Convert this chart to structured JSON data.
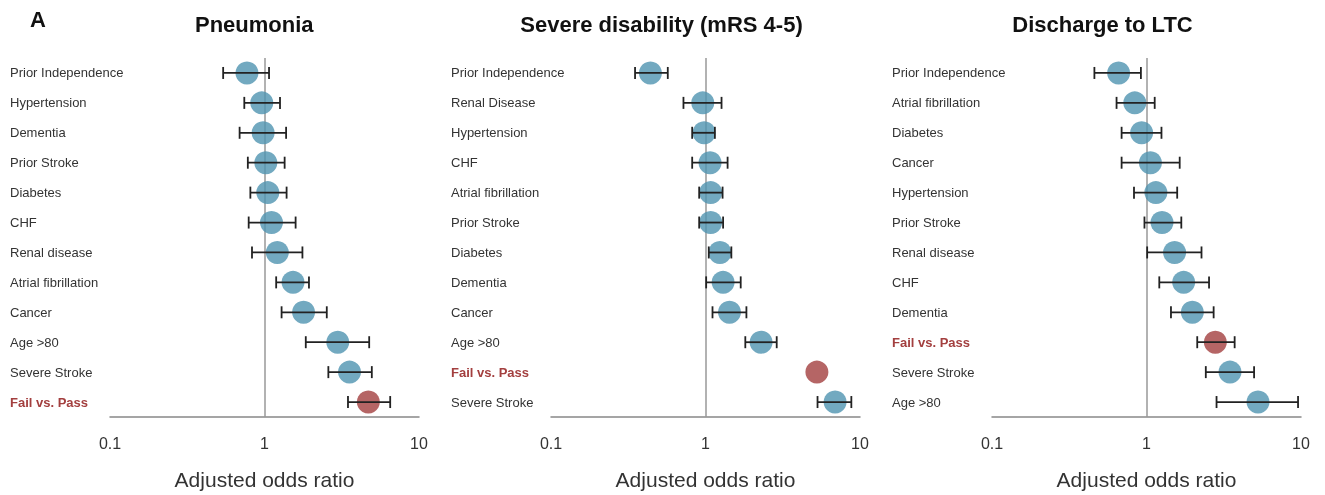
{
  "chart_data": [
    {
      "type": "scatter",
      "title": "Pneumonia",
      "xlabel": "Adjusted odds ratio",
      "annotations": [
        "A"
      ],
      "orientation": "horizontal",
      "log": "x",
      "xlim": [
        0.1,
        10
      ],
      "xticks": [
        0.1,
        1,
        10
      ],
      "grid": false,
      "marker": "circle",
      "categories": [
        "Prior Independence",
        "Hypertension",
        "Dementia",
        "Prior Stroke",
        "Diabetes",
        "CHF",
        "Renal disease",
        "Atrial fibrillation",
        "Cancer",
        "Age >80",
        "Severe Stroke",
        "Fail vs. Pass"
      ],
      "values": [
        0.77,
        0.96,
        0.98,
        1.02,
        1.05,
        1.11,
        1.21,
        1.53,
        1.79,
        2.98,
        3.55,
        4.7
      ],
      "errors": [
        [
          0.54,
          1.07
        ],
        [
          0.74,
          1.26
        ],
        [
          0.69,
          1.38
        ],
        [
          0.78,
          1.35
        ],
        [
          0.81,
          1.39
        ],
        [
          0.79,
          1.59
        ],
        [
          0.83,
          1.76
        ],
        [
          1.19,
          1.94
        ],
        [
          1.29,
          2.53
        ],
        [
          1.85,
          4.76
        ],
        [
          2.59,
          4.95
        ],
        [
          3.47,
          6.51
        ]
      ],
      "colors": [
        "#4f94b0",
        "#4f94b0",
        "#4f94b0",
        "#4f94b0",
        "#4f94b0",
        "#4f94b0",
        "#4f94b0",
        "#4f94b0",
        "#4f94b0",
        "#4f94b0",
        "#4f94b0",
        "#a33f3f"
      ],
      "ref_lines": [
        {
          "axis": "x",
          "value": 1,
          "color": "#999999"
        }
      ]
    },
    {
      "type": "scatter",
      "title": "Severe disability (mRS 4-5)",
      "xlabel": "Adjusted odds ratio",
      "orientation": "horizontal",
      "log": "x",
      "xlim": [
        0.1,
        10
      ],
      "xticks": [
        0.1,
        1,
        10
      ],
      "grid": false,
      "marker": "circle",
      "categories": [
        "Prior Independence",
        "Renal Disease",
        "Hypertension",
        "CHF",
        "Atrial fibrillation",
        "Prior Stroke",
        "Diabetes",
        "Dementia",
        "Cancer",
        "Age >80",
        "Fail vs. Pass",
        "Severe Stroke"
      ],
      "values": [
        0.44,
        0.96,
        0.98,
        1.07,
        1.08,
        1.08,
        1.24,
        1.3,
        1.43,
        2.29,
        5.26,
        6.9
      ],
      "errors": [
        [
          0.35,
          0.57
        ],
        [
          0.72,
          1.27
        ],
        [
          0.82,
          1.15
        ],
        [
          0.82,
          1.39
        ],
        [
          0.91,
          1.29
        ],
        [
          0.91,
          1.3
        ],
        [
          1.05,
          1.47
        ],
        [
          1.01,
          1.69
        ],
        [
          1.11,
          1.84
        ],
        [
          1.81,
          2.89
        ],
        null,
        [
          5.31,
          8.79
        ]
      ],
      "colors": [
        "#4f94b0",
        "#4f94b0",
        "#4f94b0",
        "#4f94b0",
        "#4f94b0",
        "#4f94b0",
        "#4f94b0",
        "#4f94b0",
        "#4f94b0",
        "#4f94b0",
        "#a33f3f",
        "#4f94b0"
      ],
      "ref_lines": [
        {
          "axis": "x",
          "value": 1,
          "color": "#999999"
        }
      ]
    },
    {
      "type": "scatter",
      "title": "Discharge to LTC",
      "xlabel": "Adjusted odds ratio",
      "orientation": "horizontal",
      "log": "x",
      "xlim": [
        0.1,
        10
      ],
      "xticks": [
        0.1,
        1,
        10
      ],
      "grid": false,
      "marker": "circle",
      "categories": [
        "Prior Independence",
        "Atrial fibrillation",
        "Diabetes",
        "Cancer",
        "Hypertension",
        "Prior Stroke",
        "Renal disease",
        "CHF",
        "Dementia",
        "Fail vs. Pass",
        "Severe Stroke",
        "Age >80"
      ],
      "values": [
        0.66,
        0.84,
        0.93,
        1.06,
        1.15,
        1.26,
        1.52,
        1.74,
        1.98,
        2.79,
        3.47,
        5.27
      ],
      "errors": [
        [
          0.46,
          0.92
        ],
        [
          0.64,
          1.13
        ],
        [
          0.69,
          1.25
        ],
        [
          0.69,
          1.64
        ],
        [
          0.83,
          1.58
        ],
        [
          0.97,
          1.68
        ],
        [
          1.01,
          2.27
        ],
        [
          1.21,
          2.54
        ],
        [
          1.44,
          2.72
        ],
        [
          2.13,
          3.72
        ],
        [
          2.42,
          4.97
        ],
        [
          2.84,
          9.57
        ]
      ],
      "colors": [
        "#4f94b0",
        "#4f94b0",
        "#4f94b0",
        "#4f94b0",
        "#4f94b0",
        "#4f94b0",
        "#4f94b0",
        "#4f94b0",
        "#4f94b0",
        "#a33f3f",
        "#4f94b0",
        "#4f94b0"
      ],
      "ref_lines": [
        {
          "axis": "x",
          "value": 1,
          "color": "#999999"
        }
      ]
    }
  ]
}
